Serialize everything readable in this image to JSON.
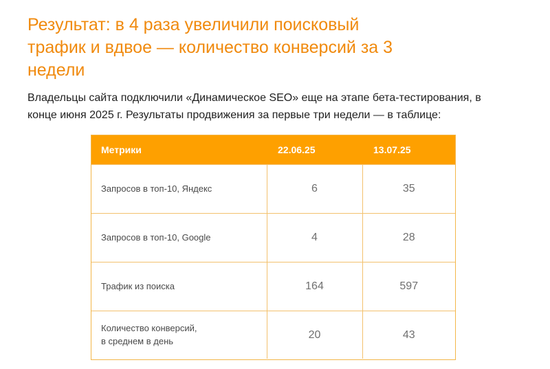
{
  "heading": {
    "lines": [
      "Результат: в 4 раза увеличили поисковый",
      "трафик и вдвое — количество конверсий за 3",
      "недели"
    ]
  },
  "intro": {
    "lines": [
      "Владельцы сайта подключили «Динамическое SEO» еще на этапе бета-тестирования, в",
      "конце июня 2025 г. Результаты продвижения за первые три недели — в таблице:"
    ]
  },
  "table": {
    "headers": [
      "Метрики",
      "22.06.25",
      "13.07.25"
    ],
    "rows": [
      {
        "metric": [
          "Запросов в топ-10, Яндекс"
        ],
        "v1": "6",
        "v2": "35"
      },
      {
        "metric": [
          "Запросов в топ-10, Google"
        ],
        "v1": "4",
        "v2": "28"
      },
      {
        "metric": [
          "Трафик из поиска"
        ],
        "v1": "164",
        "v2": "597"
      },
      {
        "metric": [
          "Количество конверсий,",
          "в среднем в день"
        ],
        "v1": "20",
        "v2": "43"
      }
    ]
  },
  "colors": {
    "accent": "#f08a0e",
    "table_header": "#fea000",
    "table_border": "#f3c16d"
  }
}
